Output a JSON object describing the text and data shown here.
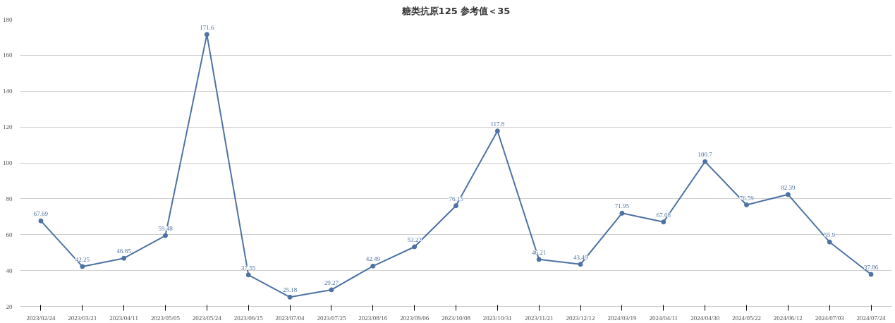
{
  "chart_data": {
    "type": "line",
    "title": "糖类抗原125 参考值＜35",
    "categories": [
      "2023/02/24",
      "2023/03/21",
      "2023/04/11",
      "2023/05/05",
      "2023/05/24",
      "2023/06/15",
      "2023/07/04",
      "2023/07/25",
      "2023/08/16",
      "2023/09/06",
      "2023/10/08",
      "2023/10/31",
      "2023/11/21",
      "2023/12/12",
      "2024/03/19",
      "2024/04/11",
      "2024/04/30",
      "2024/05/22",
      "2024/06/12",
      "2024/07/03",
      "2024/07/24"
    ],
    "series": [
      {
        "color": "#4e72a3",
        "values": [
          67.69,
          42.25,
          46.85,
          59.48,
          171.6,
          37.55,
          25.18,
          29.27,
          42.49,
          53.22,
          76.15,
          117.8,
          46.21,
          43.49,
          71.95,
          67.08,
          100.7,
          76.59,
          82.39,
          55.9,
          37.86
        ]
      }
    ],
    "ylim": [
      20,
      180
    ],
    "yticks": [
      20,
      40,
      60,
      80,
      100,
      120,
      140,
      160,
      180
    ],
    "grid": "y",
    "data_labels": true,
    "marker": "circle",
    "line_style": "solid"
  }
}
